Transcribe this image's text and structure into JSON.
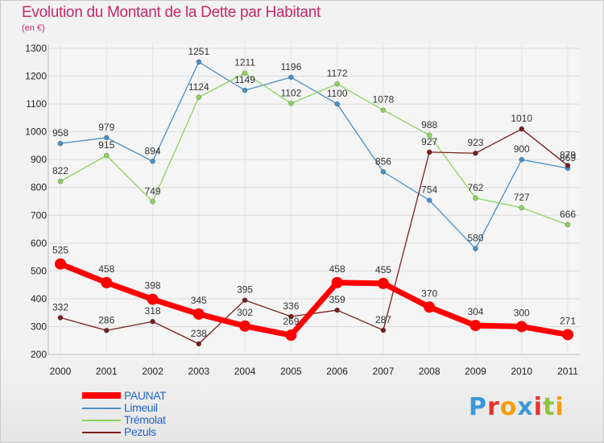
{
  "header": {
    "title": "Evolution du Montant de la Dette par Habitant",
    "subtitle": "(en €)"
  },
  "brand": {
    "text": "Proxiti",
    "letter_colors": [
      "#3a9ad9",
      "#e3342f",
      "#f59e0b",
      "#3a9ad9",
      "#e3342f",
      "#8cc63f",
      "#f59e0b"
    ]
  },
  "chart_data": {
    "type": "line",
    "title": "Evolution du Montant de la Dette par Habitant",
    "subtitle": "(en €)",
    "x": [
      "2000",
      "2001",
      "2002",
      "2003",
      "2004",
      "2005",
      "2006",
      "2007",
      "2008",
      "2009",
      "2010",
      "2011"
    ],
    "ylim": [
      200,
      1300
    ],
    "yticks": [
      200,
      300,
      400,
      500,
      600,
      700,
      800,
      900,
      1000,
      1100,
      1200,
      1300
    ],
    "grid": true,
    "legend_position": "bottom-left",
    "series": [
      {
        "name": "PAUNAT",
        "color": "#ff0000",
        "values": [
          525,
          458,
          398,
          345,
          302,
          269,
          458,
          455,
          370,
          304,
          300,
          271
        ]
      },
      {
        "name": "Limeuil",
        "color": "#4a90c8",
        "values": [
          958,
          979,
          894,
          1251,
          1149,
          1196,
          1100,
          856,
          754,
          580,
          900,
          869
        ]
      },
      {
        "name": "Trémolat",
        "color": "#8dd35f",
        "values": [
          822,
          915,
          749,
          1124,
          1211,
          1102,
          1172,
          1078,
          988,
          762,
          727,
          666
        ]
      },
      {
        "name": "Pezuls",
        "color": "#7b1f1f",
        "values": [
          332,
          286,
          318,
          238,
          395,
          336,
          359,
          287,
          927,
          923,
          1010,
          879
        ]
      }
    ]
  }
}
